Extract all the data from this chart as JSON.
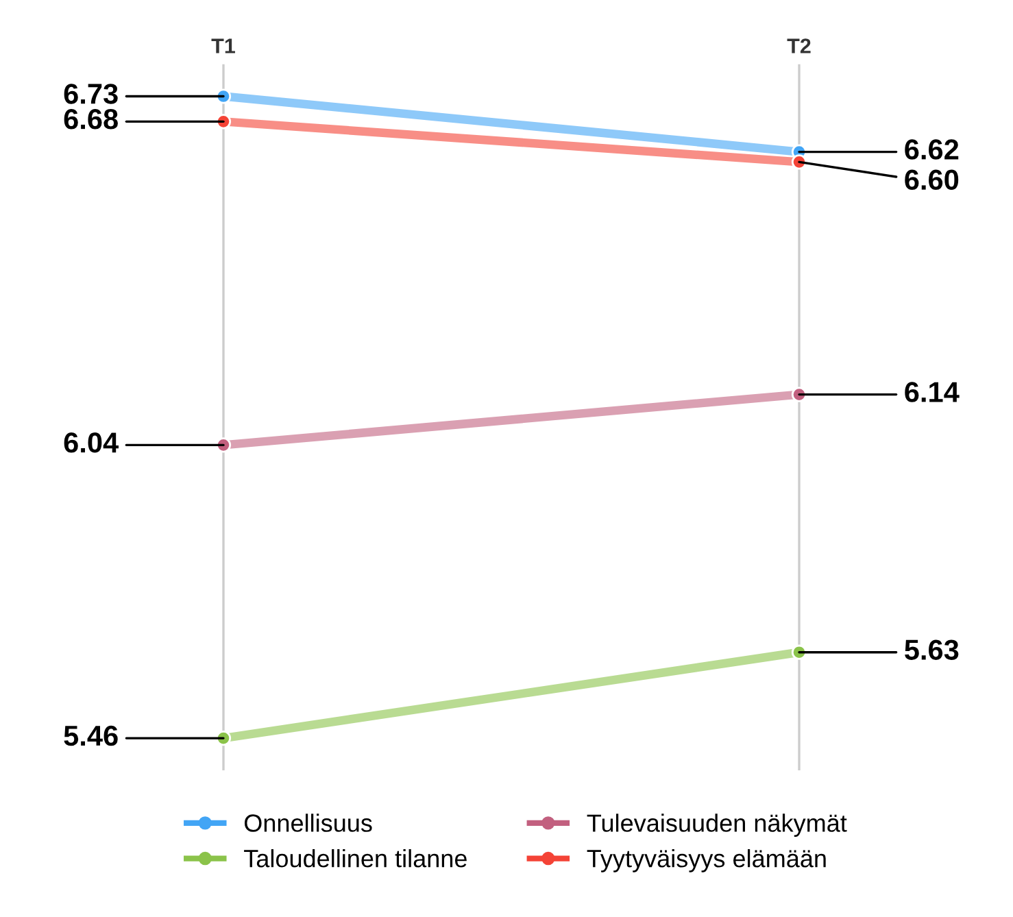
{
  "chart_data": {
    "type": "line",
    "categories": [
      "T1",
      "T2"
    ],
    "series": [
      {
        "name": "Onnellisuus",
        "color": "#42a5f5",
        "values": [
          6.73,
          6.62
        ],
        "value_labels": [
          "6.73",
          "6.62"
        ]
      },
      {
        "name": "Tulevaisuuden näkymät",
        "color": "#c2607f",
        "values": [
          6.04,
          6.14
        ],
        "value_labels": [
          "6.04",
          "6.14"
        ]
      },
      {
        "name": "Taloudellinen tilanne",
        "color": "#8bc34a",
        "values": [
          5.46,
          5.63
        ],
        "value_labels": [
          "5.46",
          "5.63"
        ]
      },
      {
        "name": "Tyytyväisyys elämään",
        "color": "#f44336",
        "values": [
          6.68,
          6.6
        ],
        "value_labels": [
          "6.68",
          "6.60"
        ]
      }
    ],
    "grid": "x",
    "legend": "bottom",
    "marker": "circle",
    "line_style": "solid"
  }
}
